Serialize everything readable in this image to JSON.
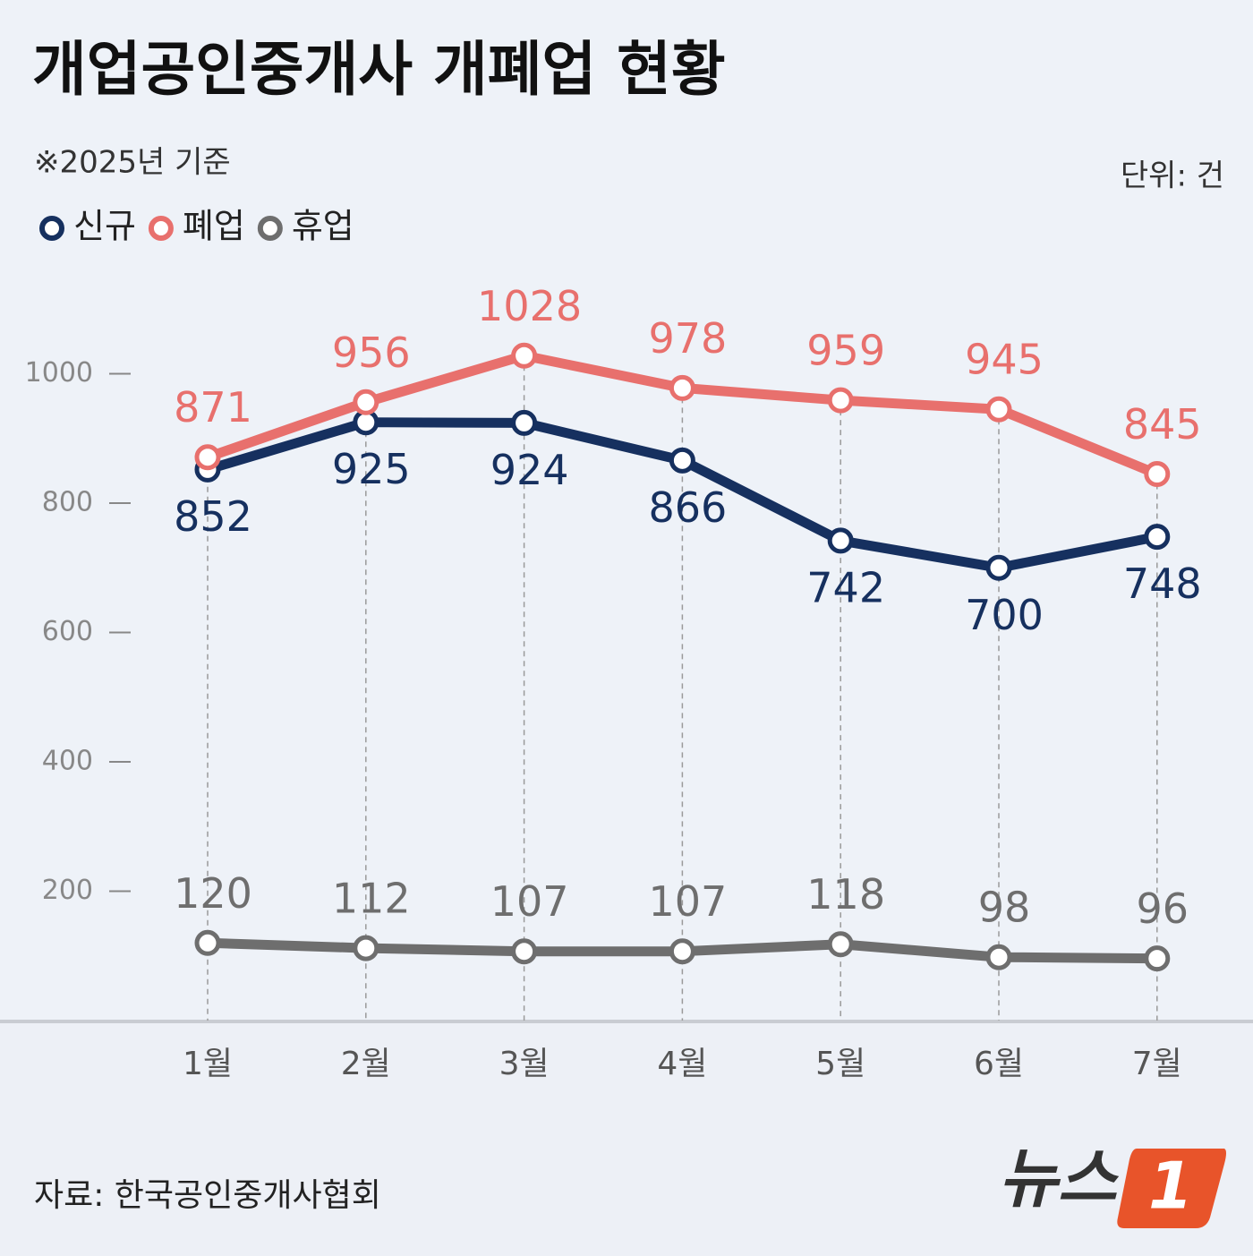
{
  "chart_data": {
    "type": "line",
    "title": "개업공인중개사 개폐업 현황",
    "subtitle": "※2025년 기준",
    "unit": "단위: 건",
    "source": "자료: 한국공인중개사협회",
    "logo": {
      "text": "뉴스",
      "number": "1"
    },
    "categories": [
      "1월",
      "2월",
      "3월",
      "4월",
      "5월",
      "6월",
      "7월"
    ],
    "series": [
      {
        "name": "신규",
        "color": "#16305f",
        "values": [
          852,
          925,
          924,
          866,
          742,
          700,
          748
        ],
        "label_side": "below"
      },
      {
        "name": "폐업",
        "color": "#e8706d",
        "values": [
          871,
          956,
          1028,
          978,
          959,
          945,
          845
        ],
        "label_side": "above"
      },
      {
        "name": "휴업",
        "color": "#6e6e6e",
        "values": [
          120,
          112,
          107,
          107,
          118,
          98,
          96
        ],
        "label_side": "above"
      }
    ],
    "ylim": [
      0,
      1100
    ],
    "yticks": [
      200,
      400,
      600,
      800,
      1000
    ],
    "grid": false
  }
}
